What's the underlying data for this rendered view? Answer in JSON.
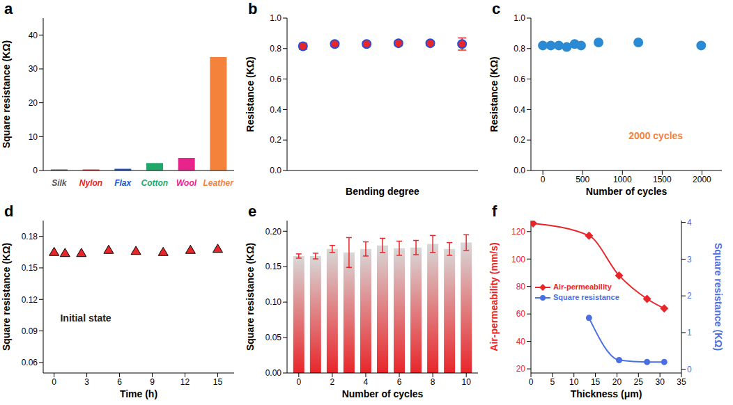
{
  "chart_data": [
    {
      "panel_label": "a",
      "type": "bar",
      "categories": [
        "Silk",
        "Nylon",
        "Flax",
        "Cotton",
        "Wool",
        "Leather"
      ],
      "values": [
        0.3,
        0.3,
        0.5,
        2.2,
        3.7,
        33.5
      ],
      "colors": [
        "#555555",
        "#e8262a",
        "#1f4fd0",
        "#1fa86a",
        "#e8248c",
        "#f5823a"
      ],
      "y_label": "Square resistance (KΩ)",
      "ylim": [
        0,
        45
      ],
      "yticks": [
        0,
        10,
        20,
        30,
        40
      ]
    },
    {
      "panel_label": "b",
      "type": "scatter",
      "x": [
        1,
        2,
        3,
        4,
        5,
        6
      ],
      "xlim": [
        0.5,
        6.5
      ],
      "values": [
        0.815,
        0.83,
        0.83,
        0.835,
        0.835,
        0.83
      ],
      "errors": [
        0.02,
        0.015,
        0.015,
        0.015,
        0.015,
        0.04
      ],
      "color": "#e8262a",
      "marker": "circle",
      "x_label": "Bending degree",
      "y_label": "Resistance (KΩ)",
      "ylim": [
        0,
        1
      ],
      "yticks": [
        {
          "value": 0,
          "label": "0.0"
        },
        {
          "value": 0.2,
          "label": "0.2"
        },
        {
          "value": 0.4,
          "label": "0.4"
        },
        {
          "value": 0.6,
          "label": "0.6"
        },
        {
          "value": 0.8,
          "label": "0.8"
        },
        {
          "value": 1,
          "label": "1.0"
        }
      ],
      "tick_labels": "y"
    },
    {
      "panel_label": "c",
      "type": "scatter",
      "x": [
        0,
        100,
        200,
        300,
        400,
        480,
        700,
        1200,
        1990
      ],
      "xlim": [
        -150,
        2250
      ],
      "xticks": [
        0,
        500,
        1000,
        1500,
        2000
      ],
      "values": [
        0.82,
        0.82,
        0.82,
        0.81,
        0.83,
        0.82,
        0.84,
        0.84,
        0.82
      ],
      "color": "#2a8ad4",
      "marker": "circle",
      "x_label": "Number of cycles",
      "y_label": "Resistance (KΩ)",
      "ylim": [
        0,
        1
      ],
      "yticks": [
        {
          "value": 0,
          "label": "0.0"
        },
        {
          "value": 0.2,
          "label": "0.2"
        },
        {
          "value": 0.4,
          "label": "0.4"
        },
        {
          "value": 0.6,
          "label": "0.6"
        },
        {
          "value": 0.8,
          "label": "0.8"
        },
        {
          "value": 1,
          "label": "1.0"
        }
      ],
      "annotations": [
        {
          "text": "2000 cycles",
          "x": 1420,
          "y": 0.23,
          "color": "#f5823a"
        }
      ]
    },
    {
      "panel_label": "d",
      "type": "scatter",
      "x": [
        0,
        1,
        2.5,
        5,
        7.5,
        10,
        12.5,
        15
      ],
      "xlim": [
        -1,
        16.5
      ],
      "xticks": [
        0,
        3,
        6,
        9,
        12,
        15
      ],
      "values": [
        0.165,
        0.164,
        0.164,
        0.167,
        0.166,
        0.165,
        0.167,
        0.168
      ],
      "color": "#e8262a",
      "marker": "triangle",
      "x_label": "Time (h)",
      "y_label": "Square resistance (KΩ)",
      "ylim": [
        0.05,
        0.195
      ],
      "yticks": [
        0.06,
        0.09,
        0.12,
        0.15,
        0.18
      ],
      "annotations": [
        {
          "text": "Initial state",
          "x": 2.9,
          "y": 0.102,
          "color": "#222222"
        }
      ]
    },
    {
      "panel_label": "e",
      "type": "bar",
      "x": [
        0,
        1,
        2,
        3,
        4,
        5,
        6,
        7,
        8,
        9,
        10
      ],
      "xlim": [
        -0.7,
        10.7
      ],
      "xticks": [
        0,
        2,
        4,
        6,
        8,
        10
      ],
      "values": [
        0.165,
        0.165,
        0.175,
        0.17,
        0.175,
        0.18,
        0.176,
        0.177,
        0.182,
        0.175,
        0.184
      ],
      "errors": [
        0.003,
        0.004,
        0.005,
        0.021,
        0.01,
        0.01,
        0.01,
        0.01,
        0.012,
        0.009,
        0.011
      ],
      "color": "#e8262a",
      "x_label": "Number of cycles",
      "y_label": "Square resistance (KΩ)",
      "ylim": [
        0,
        0.215
      ],
      "yticks": [
        {
          "value": 0,
          "label": "0.00"
        },
        {
          "value": 0.05,
          "label": "0.05"
        },
        {
          "value": 0.1,
          "label": "0.10"
        },
        {
          "value": 0.15,
          "label": "0.15"
        },
        {
          "value": 0.2,
          "label": "0.20"
        }
      ]
    },
    {
      "panel_label": "f",
      "type": "line",
      "x_label": "Thickness (μm)",
      "y_label": "Air-permeability (mm/s)",
      "y2_label": "Square resistance (KΩ)",
      "xlim": [
        0,
        35
      ],
      "xticks": [
        0,
        5,
        10,
        15,
        20,
        25,
        30,
        35
      ],
      "ylim": [
        17,
        128
      ],
      "yticks": [
        20,
        40,
        60,
        80,
        100,
        120
      ],
      "y2lim": [
        -0.1,
        4.05
      ],
      "y2ticks": [
        0,
        1,
        2,
        3,
        4
      ],
      "legend": "center left",
      "series": [
        {
          "name": "Air-permeability",
          "color": "#e8262a",
          "marker": "diamond",
          "line_style": "solid",
          "x": [
            0.5,
            13.5,
            20.5,
            27,
            31
          ],
          "values": [
            126,
            117,
            88,
            71,
            64
          ]
        },
        {
          "name": "Square resistance",
          "color": "#4a6fe3",
          "marker": "circle",
          "line_style": "solid",
          "axis": "y2",
          "x": [
            13.5,
            20.5,
            27,
            31
          ],
          "values": [
            1.4,
            0.25,
            0.2,
            0.2
          ]
        }
      ]
    }
  ]
}
